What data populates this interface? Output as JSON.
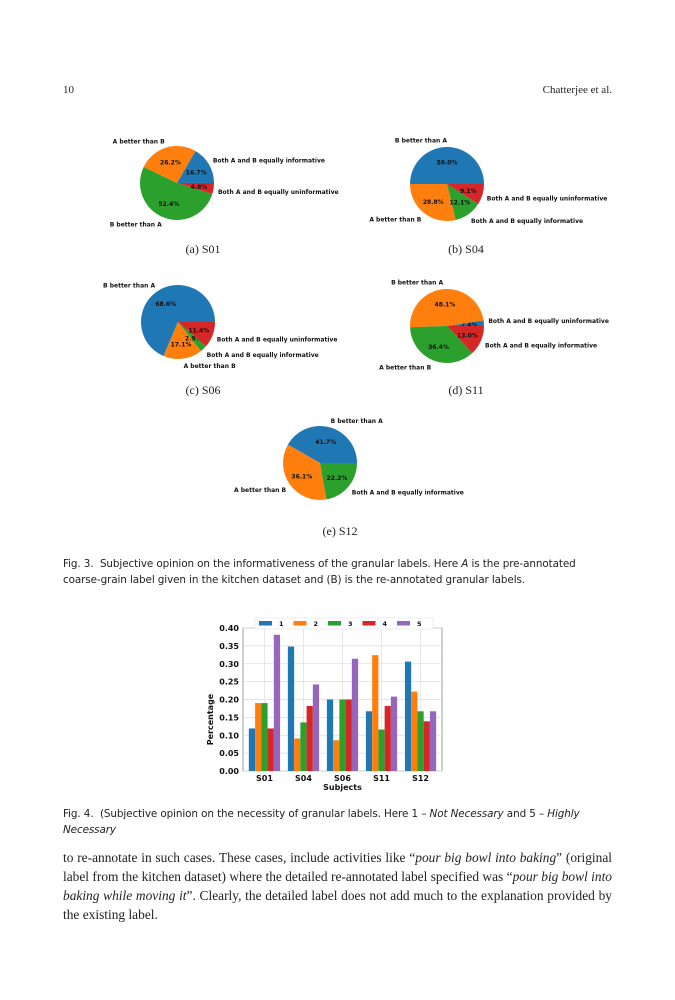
{
  "header": {
    "page_number": "10",
    "running_title": "Chatterjee et al."
  },
  "colors": {
    "blue": "#1f77b4",
    "orange": "#ff7f0e",
    "green": "#2ca02c",
    "red": "#d62728",
    "purple": "#9467bd"
  },
  "figure3": {
    "subcaptions": [
      "(a) S01",
      "(b) S04",
      "(c) S06",
      "(d) S11",
      "(e) S12"
    ],
    "caption_prefix": "Fig. 3.",
    "caption_text": "Subjective opinion on the informativeness of the granular labels. Here ",
    "caption_italic": "A",
    "caption_rest": " is the pre-annotated coarse-grain label given in the kitchen dataset and (B) is the re-annotated granular labels."
  },
  "chart_data": [
    {
      "type": "pie",
      "subject": "S01",
      "slices": [
        {
          "label": "Both A and B equally informative",
          "value": 16.7,
          "pct": "16.7%",
          "color": "#1f77b4"
        },
        {
          "label": "A better than B",
          "value": 26.2,
          "pct": "26.2%",
          "color": "#ff7f0e"
        },
        {
          "label": "B better than A",
          "value": 52.4,
          "pct": "52.4%",
          "color": "#2ca02c"
        },
        {
          "label": "Both A and B equally uninformative",
          "value": 4.8,
          "pct": "4.8%",
          "color": "#d62728"
        }
      ]
    },
    {
      "type": "pie",
      "subject": "S04",
      "slices": [
        {
          "label": "B better than A",
          "value": 50.0,
          "pct": "50.0%",
          "color": "#1f77b4"
        },
        {
          "label": "A better than B",
          "value": 28.8,
          "pct": "28.8%",
          "color": "#ff7f0e"
        },
        {
          "label": "Both A and B equally informative",
          "value": 12.1,
          "pct": "12.1%",
          "color": "#2ca02c"
        },
        {
          "label": "Both A and B equally uninformative",
          "value": 9.1,
          "pct": "9.1%",
          "color": "#d62728"
        }
      ]
    },
    {
      "type": "pie",
      "subject": "S06",
      "slices": [
        {
          "label": "B better than A",
          "value": 68.6,
          "pct": "68.6%",
          "color": "#1f77b4"
        },
        {
          "label": "A better than B",
          "value": 17.1,
          "pct": "17.1%",
          "color": "#ff7f0e"
        },
        {
          "label": "Both A and B equally informative",
          "value": 2.9,
          "pct": "2.9%",
          "color": "#2ca02c"
        },
        {
          "label": "Both A and B equally uninformative",
          "value": 11.4,
          "pct": "11.4%",
          "color": "#d62728"
        }
      ]
    },
    {
      "type": "pie",
      "subject": "S11",
      "slices": [
        {
          "label": "Both A and B equally uninformative",
          "value": 2.4,
          "pct": "2.4%",
          "color": "#1f77b4"
        },
        {
          "label": "B better than A",
          "value": 48.1,
          "pct": "48.1%",
          "color": "#ff7f0e"
        },
        {
          "label": "A better than B",
          "value": 36.4,
          "pct": "36.4%",
          "color": "#2ca02c"
        },
        {
          "label": "Both A and B equally informative",
          "value": 13.0,
          "pct": "13.0%",
          "color": "#d62728"
        }
      ]
    },
    {
      "type": "pie",
      "subject": "S12",
      "slices": [
        {
          "label": "B better than A",
          "value": 41.7,
          "pct": "41.7%",
          "color": "#1f77b4"
        },
        {
          "label": "A better than B",
          "value": 36.1,
          "pct": "36.1%",
          "color": "#ff7f0e"
        },
        {
          "label": "Both A and B equally informative",
          "value": 22.2,
          "pct": "22.2%",
          "color": "#2ca02c"
        }
      ]
    },
    {
      "type": "bar",
      "xlabel": "Subjects",
      "ylabel": "Percentage",
      "categories": [
        "S01",
        "S04",
        "S06",
        "S11",
        "S12"
      ],
      "ylim": [
        0,
        0.4
      ],
      "yticks": [
        "0.00",
        "0.05",
        "0.10",
        "0.15",
        "0.20",
        "0.25",
        "0.30",
        "0.35",
        "0.40"
      ],
      "grid": true,
      "legend": "top",
      "series": [
        {
          "name": "1",
          "color": "#1f77b4",
          "values": [
            0.119,
            0.348,
            0.2,
            0.167,
            0.306
          ]
        },
        {
          "name": "2",
          "color": "#ff7f0e",
          "values": [
            0.19,
            0.091,
            0.086,
            0.324,
            0.222
          ]
        },
        {
          "name": "3",
          "color": "#2ca02c",
          "values": [
            0.19,
            0.136,
            0.2,
            0.116,
            0.167
          ]
        },
        {
          "name": "4",
          "color": "#d62728",
          "values": [
            0.119,
            0.182,
            0.2,
            0.182,
            0.139
          ]
        },
        {
          "name": "5",
          "color": "#9467bd",
          "values": [
            0.381,
            0.242,
            0.314,
            0.208,
            0.167
          ]
        }
      ]
    }
  ],
  "figure4": {
    "caption_prefix": "Fig. 4.",
    "caption_a": "(Subjective opinion on the necessity of granular labels. Here 1 – ",
    "caption_i1": "Not Necessary",
    "caption_b": " and 5 – ",
    "caption_i2": "Highly Necessary"
  },
  "body": {
    "t1": "to re-annotate in such cases. These cases, include activities like “",
    "i1": "pour big bowl into baking",
    "t2": "” (original label from the kitchen dataset) where the detailed re-annotated label specified was “",
    "i2": "pour big bowl into baking while moving it",
    "t3": "”. Clearly, the detailed label does not add much to the explanation provided by the existing label."
  }
}
